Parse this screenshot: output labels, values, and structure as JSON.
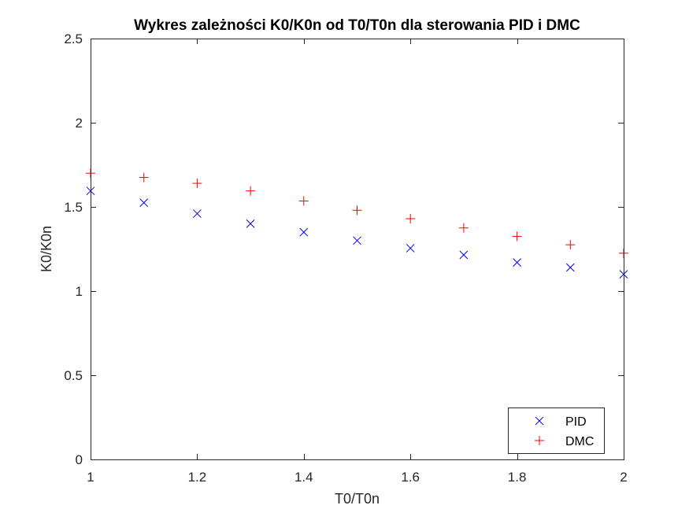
{
  "chart_data": {
    "type": "scatter",
    "title": "Wykres zależności K0/K0n od T0/T0n dla sterowania PID i DMC",
    "xlabel": "T0/T0n",
    "ylabel": "K0/K0n",
    "xlim": [
      1,
      2
    ],
    "ylim": [
      0,
      2.5
    ],
    "xticks": [
      1,
      1.2,
      1.4,
      1.6,
      1.8,
      2
    ],
    "xtick_labels": [
      "1",
      "1.2",
      "1.4",
      "1.6",
      "1.8",
      "2"
    ],
    "yticks": [
      0,
      0.5,
      1,
      1.5,
      2,
      2.5
    ],
    "ytick_labels": [
      "0",
      "0.5",
      "1",
      "1.5",
      "2",
      "2.5"
    ],
    "grid": false,
    "box": true,
    "legend_position": "bottom-right",
    "x": [
      1,
      1.1,
      1.2,
      1.3,
      1.4,
      1.5,
      1.6,
      1.7,
      1.8,
      1.9,
      2
    ],
    "series": [
      {
        "name": "PID",
        "marker": "x",
        "color": "#0000ff",
        "values": [
          1.595,
          1.525,
          1.46,
          1.4,
          1.35,
          1.3,
          1.255,
          1.215,
          1.17,
          1.14,
          1.1
        ]
      },
      {
        "name": "DMC",
        "marker": "+",
        "color": "#ff0000",
        "values": [
          1.7,
          1.675,
          1.64,
          1.595,
          1.535,
          1.48,
          1.43,
          1.375,
          1.325,
          1.275,
          1.225
        ]
      }
    ]
  }
}
